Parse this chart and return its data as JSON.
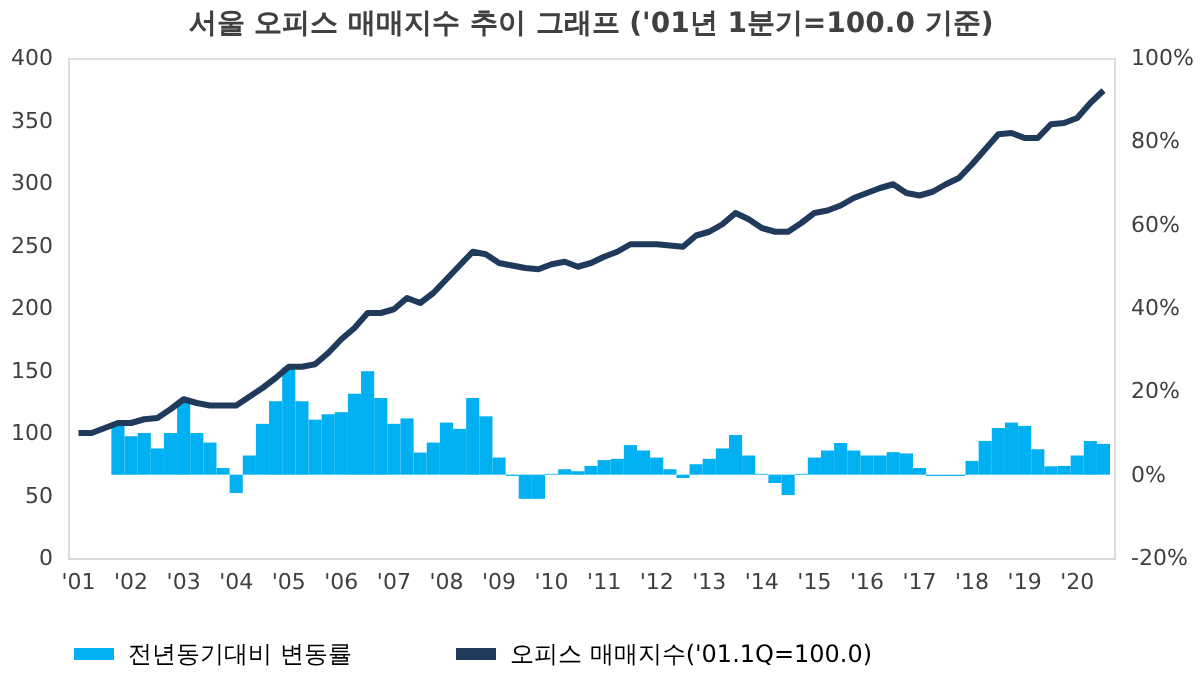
{
  "chart_data": {
    "type": "line",
    "title": "서울 오피스 매매지수 추이 그래프 ('01년 1분기=100.0 기준)",
    "categories": [
      "'01",
      null,
      null,
      null,
      "'02",
      null,
      null,
      null,
      "'03",
      null,
      null,
      null,
      "'04",
      null,
      null,
      null,
      "'05",
      null,
      null,
      null,
      "'06",
      null,
      null,
      null,
      "'07",
      null,
      null,
      null,
      "'08",
      null,
      null,
      null,
      "'09",
      null,
      null,
      null,
      "'10",
      null,
      null,
      null,
      "'11",
      null,
      null,
      null,
      "'12",
      null,
      null,
      null,
      "'13",
      null,
      null,
      null,
      "'14",
      null,
      null,
      null,
      "'15",
      null,
      null,
      null,
      "'16",
      null,
      null,
      null,
      "'17",
      null,
      null,
      null,
      "'18",
      null,
      null,
      null,
      "'19",
      null,
      null,
      null,
      "'20",
      null,
      null
    ],
    "series": [
      {
        "name": "전년동기대비 변동률",
        "type": "bar",
        "axis": "y2",
        "color": "#00b0f0",
        "values": [
          null,
          null,
          null,
          11.7,
          9.2,
          10.0,
          6.3,
          10.0,
          17.3,
          10.0,
          7.7,
          1.6,
          -4.4,
          4.6,
          12.2,
          17.6,
          25.7,
          17.6,
          13.2,
          14.5,
          15.0,
          19.4,
          24.8,
          18.4,
          12.2,
          13.5,
          5.3,
          7.7,
          12.5,
          11.0,
          18.4,
          14.0,
          4.1,
          -0.3,
          -5.8,
          -5.8,
          0.2,
          1.3,
          0.8,
          2.1,
          3.5,
          3.8,
          7.1,
          5.8,
          4.1,
          1.3,
          -0.8,
          2.5,
          3.8,
          6.3,
          9.5,
          4.6,
          0.2,
          -2.0,
          -4.9,
          0.2,
          4.1,
          5.8,
          7.6,
          5.8,
          4.6,
          4.6,
          5.4,
          5.1,
          1.6,
          -0.3,
          -0.3,
          -0.3,
          3.3,
          8.1,
          11.2,
          12.5,
          11.7,
          6.1,
          2.0,
          2.1,
          4.6,
          8.1,
          7.4
        ]
      },
      {
        "name": "오피스 매매지수('01.1Q=100.0)",
        "axis": "y",
        "color": "#203a5c",
        "values": [
          100,
          100,
          104,
          108,
          108,
          111,
          112,
          119,
          127,
          124,
          122,
          122,
          122,
          129,
          136,
          144,
          153,
          153,
          155,
          164,
          175,
          184,
          196,
          196,
          199,
          208,
          204,
          212,
          223,
          234,
          245,
          243,
          236,
          234,
          232,
          231,
          235,
          237,
          233,
          236,
          241,
          245,
          251,
          251,
          251,
          250,
          249,
          258,
          261,
          267,
          276,
          271,
          264,
          261,
          261,
          268,
          276,
          278,
          282,
          288,
          292,
          296,
          299,
          292,
          290,
          293,
          299,
          304,
          315,
          327,
          339,
          340,
          336,
          336,
          347,
          348,
          352,
          364,
          374
        ]
      }
    ],
    "ylim": [
      0,
      400
    ],
    "yticks": [
      0,
      50,
      100,
      150,
      200,
      250,
      300,
      350,
      400
    ],
    "y2lim": [
      -20,
      100
    ],
    "y2ticks": [
      {
        "value": -20,
        "label": "-20%"
      },
      {
        "value": 0,
        "label": "0%"
      },
      {
        "value": 20,
        "label": "20%"
      },
      {
        "value": 40,
        "label": "40%"
      },
      {
        "value": 60,
        "label": "60%"
      },
      {
        "value": 80,
        "label": "80%"
      },
      {
        "value": 100,
        "label": "100%"
      }
    ],
    "legend": "bottom",
    "grid": false,
    "marker": "none",
    "line_style": "solid"
  }
}
